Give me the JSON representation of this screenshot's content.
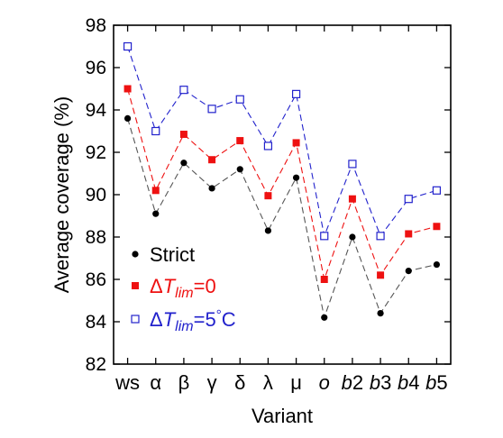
{
  "chart_data": {
    "type": "line",
    "xlabel": "Variant",
    "ylabel": "Average coverage (%)",
    "ylim": [
      82,
      98
    ],
    "yticks": [
      82,
      84,
      86,
      88,
      90,
      92,
      94,
      96,
      98
    ],
    "grid": false,
    "legend_position": "bottom-left",
    "categories": [
      {
        "main": "ws",
        "italic": false
      },
      {
        "main": "α",
        "italic": false
      },
      {
        "main": "β",
        "italic": false
      },
      {
        "main": "γ",
        "italic": false
      },
      {
        "main": "δ",
        "italic": false
      },
      {
        "main": "λ",
        "italic": false
      },
      {
        "main": "μ",
        "italic": false
      },
      {
        "main": "o",
        "italic": true
      },
      {
        "main": "b",
        "sub": "2",
        "italic": true
      },
      {
        "main": "b",
        "sub": "3",
        "italic": true
      },
      {
        "main": "b",
        "sub": "4",
        "italic": true
      },
      {
        "main": "b",
        "sub": "5",
        "italic": true
      }
    ],
    "series": [
      {
        "name": "Strict",
        "legend": {
          "text": "Strict"
        },
        "marker": "circle-filled",
        "color": "#000000",
        "line_color": "#555555",
        "values": [
          93.6,
          89.1,
          91.5,
          90.3,
          91.2,
          88.3,
          90.8,
          84.2,
          88.0,
          84.4,
          86.4,
          86.7
        ]
      },
      {
        "name": "ΔT_lim=0",
        "legend": {
          "delta": "Δ",
          "T": "T",
          "sub": "lim",
          "rest": "=0"
        },
        "marker": "square-filled",
        "color": "#ee1111",
        "line_color": "#ee1111",
        "values": [
          95.0,
          90.2,
          92.85,
          91.65,
          92.55,
          89.95,
          92.45,
          86.0,
          89.8,
          86.2,
          88.15,
          88.5
        ]
      },
      {
        "name": "ΔT_lim=5°C",
        "legend": {
          "delta": "Δ",
          "T": "T",
          "sub": "lim",
          "rest": "=5",
          "deg": "°",
          "unit": "C"
        },
        "marker": "square-open",
        "color": "#2222cc",
        "line_color": "#2222cc",
        "values": [
          97.0,
          93.0,
          94.95,
          94.05,
          94.5,
          92.3,
          94.75,
          88.05,
          91.45,
          88.05,
          89.8,
          90.2
        ]
      }
    ]
  }
}
